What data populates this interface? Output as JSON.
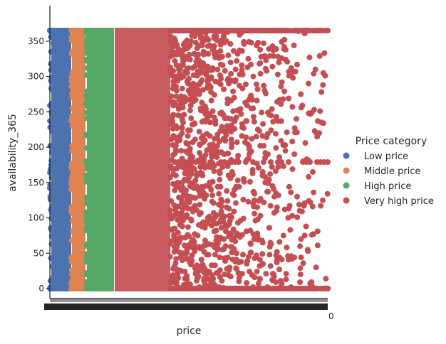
{
  "chart_data": {
    "type": "scatter",
    "title": "",
    "xlabel": "price",
    "ylabel": "availability_365",
    "ylim": [
      0,
      365
    ],
    "yticks": [
      0,
      50,
      100,
      150,
      200,
      250,
      300,
      350
    ],
    "x_axis_type": "categorical",
    "x_tick_labels_visible": false,
    "x_tick_label_fragment": "0",
    "grid": false,
    "legend": {
      "title": "Price category",
      "placement": "right",
      "entries": [
        {
          "label": "Low price",
          "color": "#4c72b0"
        },
        {
          "label": "Middle price",
          "color": "#dd8452"
        },
        {
          "label": "High price",
          "color": "#55a868"
        },
        {
          "label": "Very high price",
          "color": "#c44e52"
        }
      ]
    },
    "series": [
      {
        "name": "Low price",
        "color": "#4c72b0",
        "x_range": "lowest price values",
        "y_range": [
          0,
          365
        ],
        "density": "dense"
      },
      {
        "name": "Middle price",
        "color": "#dd8452",
        "x_range": "low-middle price values",
        "y_range": [
          0,
          365
        ],
        "density": "dense"
      },
      {
        "name": "High price",
        "color": "#55a868",
        "x_range": "middle price values",
        "y_range": [
          0,
          365
        ],
        "density": "dense"
      },
      {
        "name": "Very high price",
        "color": "#c44e52",
        "x_range": "highest price values",
        "y_range": [
          0,
          365
        ],
        "density": "dense then sparse"
      }
    ]
  }
}
